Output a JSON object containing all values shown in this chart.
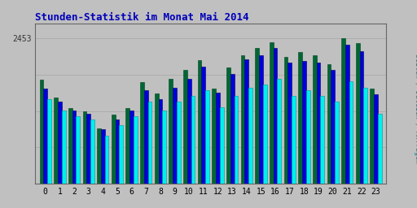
{
  "title": "Stunden-Statistik im Monat Mai 2014",
  "hours": [
    0,
    1,
    2,
    3,
    4,
    5,
    6,
    7,
    8,
    9,
    10,
    11,
    12,
    13,
    14,
    15,
    16,
    17,
    18,
    19,
    20,
    21,
    22,
    23
  ],
  "seiten": [
    1750,
    1460,
    1275,
    1225,
    935,
    1170,
    1280,
    1720,
    1520,
    1770,
    1915,
    2090,
    1600,
    1965,
    2165,
    2285,
    2385,
    2140,
    2220,
    2165,
    2020,
    2453,
    2365,
    1605
  ],
  "dateien": [
    1600,
    1380,
    1235,
    1180,
    915,
    1085,
    1235,
    1575,
    1430,
    1625,
    1775,
    1970,
    1530,
    1845,
    2095,
    2165,
    2290,
    2045,
    2065,
    2045,
    1920,
    2340,
    2240,
    1505
  ],
  "anfragen": [
    1430,
    1235,
    1135,
    1085,
    815,
    990,
    1135,
    1380,
    1235,
    1380,
    1480,
    1575,
    1285,
    1480,
    1625,
    1675,
    1775,
    1480,
    1575,
    1480,
    1380,
    1725,
    1625,
    1185
  ],
  "color_seiten": "#006633",
  "color_dateien": "#0000dd",
  "color_anfragen": "#00eeee",
  "edgecolor_seiten": "#004422",
  "edgecolor_dateien": "#000066",
  "edgecolor_anfragen": "#009999",
  "bg_color": "#c0c0c0",
  "title_color": "#0000bb",
  "ylabel_color": "#008888",
  "ymax": 2453,
  "bar_width": 0.27
}
